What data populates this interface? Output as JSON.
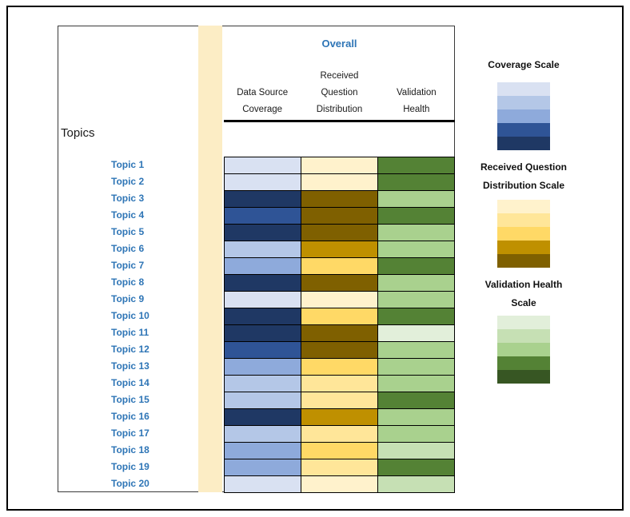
{
  "header": {
    "overall_label": "Overall",
    "topics_label": "Topics"
  },
  "columns": [
    {
      "label": "Data Source\nCoverage"
    },
    {
      "label": "Received\nQuestion\nDistribution"
    },
    {
      "label": "Validation\nHealth"
    }
  ],
  "chart_data": {
    "type": "heatmap",
    "title": "Overall",
    "row_header": "Topics",
    "columns": [
      "Data Source Coverage",
      "Received Question Distribution",
      "Validation Health"
    ],
    "rows": [
      "Topic 1",
      "Topic 2",
      "Topic 3",
      "Topic 4",
      "Topic 5",
      "Topic 6",
      "Topic 7",
      "Topic 8",
      "Topic 9",
      "Topic 10",
      "Topic 11",
      "Topic 12",
      "Topic 13",
      "Topic 14",
      "Topic 15",
      "Topic 16",
      "Topic 17",
      "Topic 18",
      "Topic 19",
      "Topic 20"
    ],
    "levels_note": "Each column uses its own 5-step color scale; 1 = lightest swatch, 5 = darkest swatch",
    "values": [
      [
        1,
        1,
        4
      ],
      [
        1,
        1,
        4
      ],
      [
        5,
        5,
        3
      ],
      [
        4,
        5,
        4
      ],
      [
        5,
        5,
        3
      ],
      [
        2,
        4,
        3
      ],
      [
        3,
        3,
        4
      ],
      [
        5,
        5,
        3
      ],
      [
        1,
        1,
        3
      ],
      [
        5,
        3,
        4
      ],
      [
        5,
        5,
        1
      ],
      [
        4,
        5,
        3
      ],
      [
        3,
        3,
        3
      ],
      [
        2,
        2,
        3
      ],
      [
        2,
        2,
        4
      ],
      [
        5,
        4,
        3
      ],
      [
        2,
        2,
        3
      ],
      [
        3,
        3,
        2
      ],
      [
        3,
        2,
        4
      ],
      [
        1,
        1,
        2
      ]
    ],
    "cell_colors": [
      [
        "#D9E1F2",
        "#FFF2CC",
        "#548235"
      ],
      [
        "#D9E1F2",
        "#FFF2CC",
        "#548235"
      ],
      [
        "#1F3864",
        "#7F6000",
        "#A9D18E"
      ],
      [
        "#2F5496",
        "#7F6000",
        "#548235"
      ],
      [
        "#1F3864",
        "#7F6000",
        "#A9D18E"
      ],
      [
        "#B4C7E7",
        "#BF9000",
        "#A9D18E"
      ],
      [
        "#8EAADB",
        "#FFD966",
        "#548235"
      ],
      [
        "#1F3864",
        "#7F6000",
        "#A9D18E"
      ],
      [
        "#D9E1F2",
        "#FFF2CC",
        "#A9D18E"
      ],
      [
        "#1F3864",
        "#FFD966",
        "#548235"
      ],
      [
        "#1F3864",
        "#7F6000",
        "#E2EFDA"
      ],
      [
        "#2F5496",
        "#7F6000",
        "#A9D18E"
      ],
      [
        "#8EAADB",
        "#FFD966",
        "#A9D18E"
      ],
      [
        "#B4C7E7",
        "#FFE699",
        "#A9D18E"
      ],
      [
        "#B4C7E7",
        "#FFE699",
        "#548235"
      ],
      [
        "#1F3864",
        "#BF9000",
        "#A9D18E"
      ],
      [
        "#B4C7E7",
        "#FFE699",
        "#A9D18E"
      ],
      [
        "#8EAADB",
        "#FFD966",
        "#C6E0B4"
      ],
      [
        "#8EAADB",
        "#FFE699",
        "#548235"
      ],
      [
        "#D9E1F2",
        "#FFF2CC",
        "#C6E0B4"
      ]
    ],
    "legend_position": "right",
    "grid": true
  },
  "scales": [
    {
      "title": "Coverage Scale",
      "colors": [
        "#D9E1F2",
        "#B4C7E7",
        "#8EAADB",
        "#2F5496",
        "#1F3864"
      ]
    },
    {
      "title": "Received Question\nDistribution Scale",
      "colors": [
        "#FFF2CC",
        "#FFE699",
        "#FFD966",
        "#BF9000",
        "#7F6000"
      ]
    },
    {
      "title": "Validation Health\nScale",
      "colors": [
        "#E2EFDA",
        "#C6E0B4",
        "#A9D18E",
        "#548235",
        "#375623"
      ]
    }
  ],
  "palette": {
    "topic_label_color": "#2E75B6",
    "band_color": "#FCEDC5",
    "grid_line_color": "#000000"
  }
}
